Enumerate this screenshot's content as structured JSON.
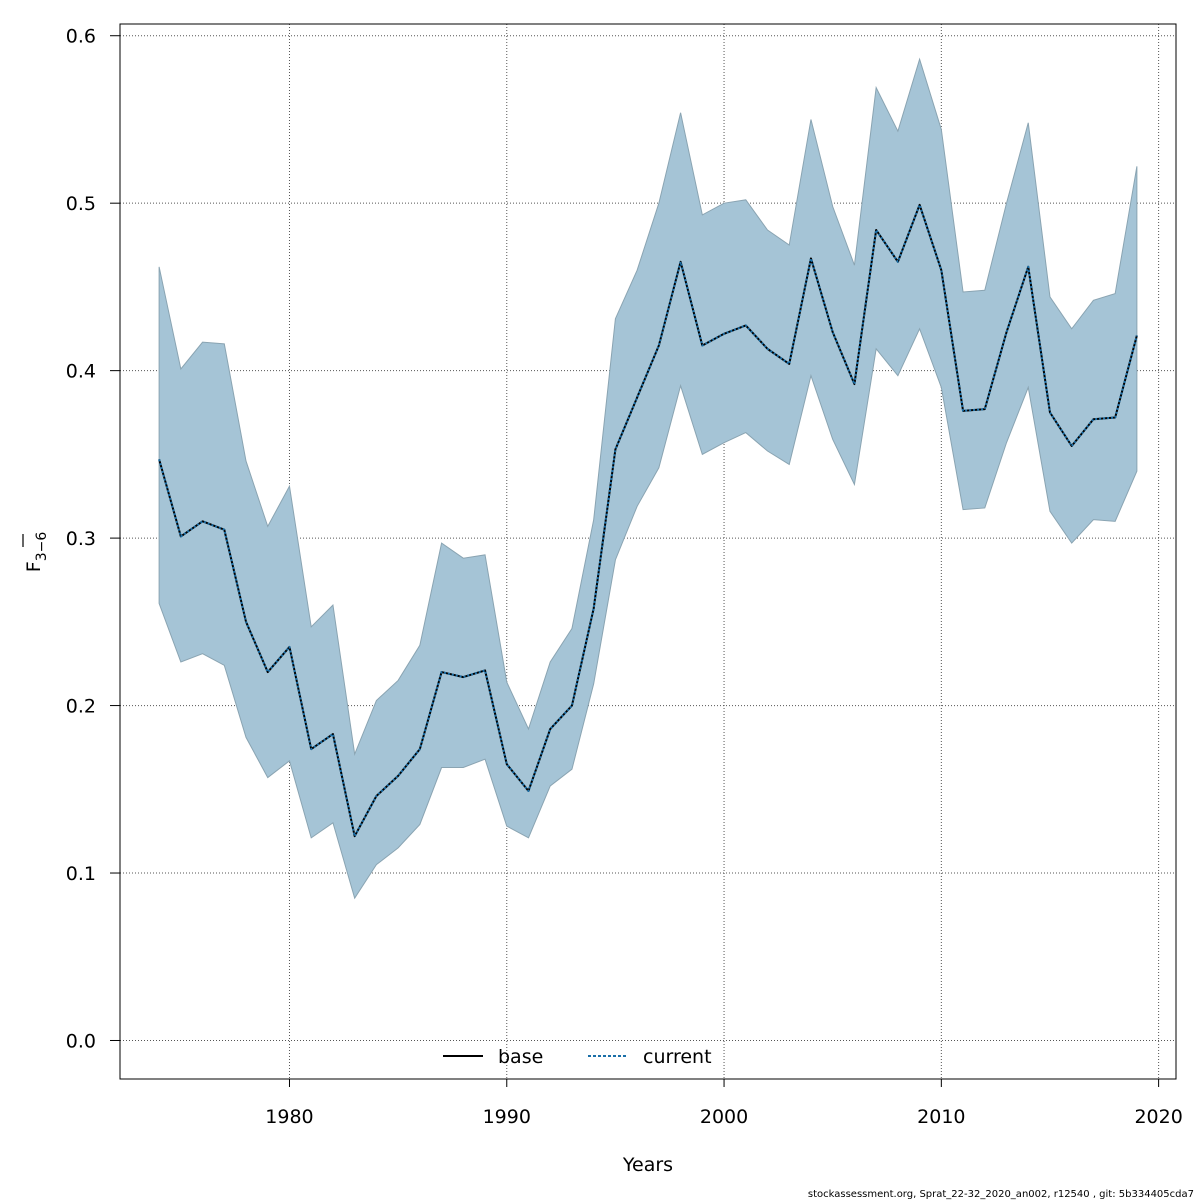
{
  "chart_data": {
    "type": "line",
    "xlabel": "Years",
    "ylabel_main": "F",
    "ylabel_sub": "3−6",
    "xlim": [
      1972.2,
      2020.8
    ],
    "ylim": [
      -0.023,
      0.607
    ],
    "xticks": [
      1980,
      1990,
      2000,
      2010,
      2020
    ],
    "xtick_labels": [
      "1980",
      "1990",
      "2000",
      "2010",
      "2020"
    ],
    "yticks": [
      0.0,
      0.1,
      0.2,
      0.3,
      0.4,
      0.5,
      0.6
    ],
    "ytick_labels": [
      "0.0",
      "0.1",
      "0.2",
      "0.3",
      "0.4",
      "0.5",
      "0.6"
    ],
    "grid": true,
    "legend_placement": "bottom-center",
    "colors": {
      "band_fill": "#a5c4d6",
      "band_stroke": "#8aa4b2",
      "base_line": "#000000",
      "current_line": "#1a6fa8",
      "grid": "#555555"
    },
    "x": [
      1974,
      1975,
      1976,
      1977,
      1978,
      1979,
      1980,
      1981,
      1982,
      1983,
      1984,
      1985,
      1986,
      1987,
      1988,
      1989,
      1990,
      1991,
      1992,
      1993,
      1994,
      1995,
      1996,
      1997,
      1998,
      1999,
      2000,
      2001,
      2002,
      2003,
      2004,
      2005,
      2006,
      2007,
      2008,
      2009,
      2010,
      2011,
      2012,
      2013,
      2014,
      2015,
      2016,
      2017,
      2018,
      2019
    ],
    "band_lower": [
      0.261,
      0.226,
      0.231,
      0.224,
      0.181,
      0.157,
      0.167,
      0.121,
      0.13,
      0.085,
      0.105,
      0.115,
      0.129,
      0.163,
      0.163,
      0.168,
      0.128,
      0.121,
      0.152,
      0.162,
      0.213,
      0.287,
      0.319,
      0.342,
      0.391,
      0.35,
      0.357,
      0.363,
      0.352,
      0.344,
      0.397,
      0.359,
      0.332,
      0.413,
      0.397,
      0.425,
      0.39,
      0.317,
      0.318,
      0.357,
      0.39,
      0.316,
      0.297,
      0.311,
      0.31,
      0.34
    ],
    "band_upper": [
      0.462,
      0.401,
      0.417,
      0.416,
      0.346,
      0.307,
      0.331,
      0.247,
      0.26,
      0.171,
      0.203,
      0.215,
      0.236,
      0.297,
      0.288,
      0.29,
      0.214,
      0.186,
      0.226,
      0.246,
      0.311,
      0.431,
      0.46,
      0.5,
      0.554,
      0.493,
      0.5,
      0.502,
      0.484,
      0.475,
      0.55,
      0.498,
      0.463,
      0.569,
      0.543,
      0.586,
      0.544,
      0.447,
      0.448,
      0.5,
      0.548,
      0.444,
      0.425,
      0.442,
      0.446,
      0.522
    ],
    "series": [
      {
        "name": "base",
        "values": [
          0.347,
          0.301,
          0.31,
          0.305,
          0.25,
          0.22,
          0.235,
          0.174,
          0.183,
          0.122,
          0.146,
          0.158,
          0.174,
          0.22,
          0.217,
          0.221,
          0.165,
          0.149,
          0.186,
          0.2,
          0.258,
          0.353,
          0.384,
          0.415,
          0.465,
          0.415,
          0.422,
          0.427,
          0.413,
          0.404,
          0.467,
          0.423,
          0.392,
          0.484,
          0.465,
          0.499,
          0.46,
          0.376,
          0.377,
          0.423,
          0.462,
          0.375,
          0.355,
          0.371,
          0.372,
          0.421
        ]
      },
      {
        "name": "current",
        "values": [
          0.347,
          0.301,
          0.31,
          0.305,
          0.25,
          0.22,
          0.235,
          0.174,
          0.183,
          0.122,
          0.146,
          0.158,
          0.174,
          0.22,
          0.217,
          0.221,
          0.165,
          0.149,
          0.186,
          0.2,
          0.258,
          0.353,
          0.384,
          0.415,
          0.465,
          0.415,
          0.422,
          0.427,
          0.413,
          0.404,
          0.467,
          0.423,
          0.392,
          0.484,
          0.465,
          0.499,
          0.46,
          0.376,
          0.377,
          0.423,
          0.462,
          0.375,
          0.355,
          0.371,
          0.372,
          0.421
        ]
      }
    ]
  },
  "footer_text": "stockassessment.org, Sprat_22-32_2020_an002, r12540 , git: 5b334405cda7"
}
